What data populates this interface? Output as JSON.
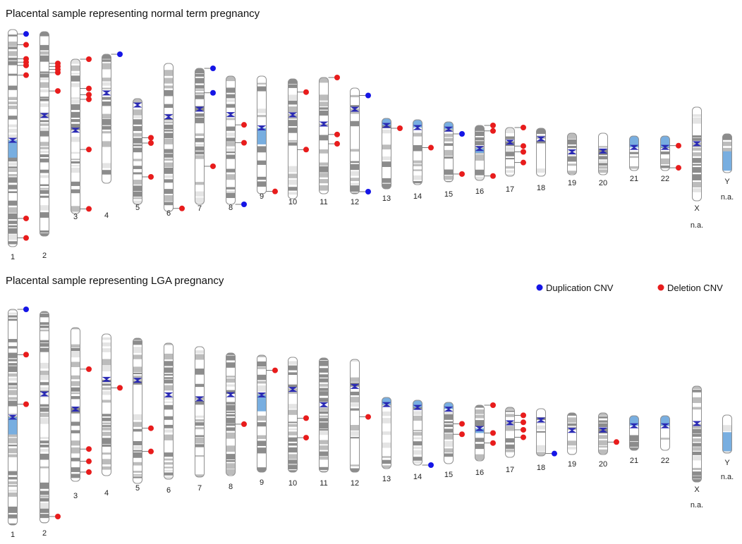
{
  "colors": {
    "duplication": "#1515e6",
    "deletion": "#e81c1c",
    "centromere": "#2a2ab4",
    "heterochromatin": "#78aee0",
    "outline": "#909090",
    "band_dark": "#8c8c8c",
    "band_mid": "#bcbcbc",
    "band_light": "#e4e4e4"
  },
  "legend": {
    "duplication_label": "Duplication CNV",
    "deletion_label": "Deletion CNV"
  },
  "panels": [
    {
      "id": "normal",
      "title": "Placental sample representing normal term pregnancy",
      "chromosomes": [
        {
          "label": "1",
          "na": ""
        },
        {
          "label": "2",
          "na": ""
        },
        {
          "label": "3",
          "na": ""
        },
        {
          "label": "4",
          "na": ""
        },
        {
          "label": "5",
          "na": ""
        },
        {
          "label": "6",
          "na": ""
        },
        {
          "label": "7",
          "na": ""
        },
        {
          "label": "8",
          "na": ""
        },
        {
          "label": "9",
          "na": ""
        },
        {
          "label": "10",
          "na": ""
        },
        {
          "label": "11",
          "na": ""
        },
        {
          "label": "12",
          "na": ""
        },
        {
          "label": "13",
          "na": ""
        },
        {
          "label": "14",
          "na": ""
        },
        {
          "label": "15",
          "na": ""
        },
        {
          "label": "16",
          "na": ""
        },
        {
          "label": "17",
          "na": ""
        },
        {
          "label": "18",
          "na": ""
        },
        {
          "label": "19",
          "na": ""
        },
        {
          "label": "20",
          "na": ""
        },
        {
          "label": "21",
          "na": ""
        },
        {
          "label": "22",
          "na": ""
        },
        {
          "label": "X",
          "na": "n.a."
        },
        {
          "label": "Y",
          "na": "n.a."
        }
      ],
      "cnvs": [
        {
          "chr": "1",
          "pos": 0.02,
          "type": "duplication"
        },
        {
          "chr": "1",
          "pos": 0.07,
          "type": "deletion"
        },
        {
          "chr": "1",
          "pos": 0.135,
          "type": "deletion"
        },
        {
          "chr": "1",
          "pos": 0.15,
          "type": "deletion"
        },
        {
          "chr": "1",
          "pos": 0.165,
          "type": "deletion"
        },
        {
          "chr": "1",
          "pos": 0.21,
          "type": "deletion"
        },
        {
          "chr": "1",
          "pos": 0.87,
          "type": "deletion"
        },
        {
          "chr": "1",
          "pos": 0.96,
          "type": "deletion"
        },
        {
          "chr": "2",
          "pos": 0.155,
          "type": "deletion"
        },
        {
          "chr": "2",
          "pos": 0.17,
          "type": "deletion"
        },
        {
          "chr": "2",
          "pos": 0.185,
          "type": "deletion"
        },
        {
          "chr": "2",
          "pos": 0.2,
          "type": "deletion"
        },
        {
          "chr": "2",
          "pos": 0.29,
          "type": "deletion"
        },
        {
          "chr": "3",
          "pos": 0.0,
          "type": "deletion"
        },
        {
          "chr": "3",
          "pos": 0.19,
          "type": "deletion"
        },
        {
          "chr": "3",
          "pos": 0.23,
          "type": "deletion"
        },
        {
          "chr": "3",
          "pos": 0.26,
          "type": "deletion"
        },
        {
          "chr": "3",
          "pos": 0.585,
          "type": "deletion"
        },
        {
          "chr": "3",
          "pos": 0.97,
          "type": "deletion"
        },
        {
          "chr": "4",
          "pos": 0.0,
          "type": "duplication"
        },
        {
          "chr": "5",
          "pos": 0.37,
          "type": "deletion"
        },
        {
          "chr": "5",
          "pos": 0.42,
          "type": "deletion"
        },
        {
          "chr": "5",
          "pos": 0.74,
          "type": "deletion"
        },
        {
          "chr": "6",
          "pos": 0.98,
          "type": "deletion"
        },
        {
          "chr": "7",
          "pos": 0.0,
          "type": "duplication"
        },
        {
          "chr": "7",
          "pos": 0.18,
          "type": "duplication"
        },
        {
          "chr": "7",
          "pos": 0.72,
          "type": "deletion"
        },
        {
          "chr": "8",
          "pos": 0.38,
          "type": "deletion"
        },
        {
          "chr": "8",
          "pos": 0.52,
          "type": "deletion"
        },
        {
          "chr": "8",
          "pos": 1.0,
          "type": "duplication"
        },
        {
          "chr": "9",
          "pos": 0.98,
          "type": "deletion"
        },
        {
          "chr": "10",
          "pos": 0.11,
          "type": "deletion"
        },
        {
          "chr": "10",
          "pos": 0.59,
          "type": "deletion"
        },
        {
          "chr": "11",
          "pos": 0.0,
          "type": "deletion"
        },
        {
          "chr": "11",
          "pos": 0.49,
          "type": "deletion"
        },
        {
          "chr": "11",
          "pos": 0.57,
          "type": "deletion"
        },
        {
          "chr": "12",
          "pos": 0.07,
          "type": "duplication"
        },
        {
          "chr": "12",
          "pos": 0.98,
          "type": "duplication"
        },
        {
          "chr": "13",
          "pos": 0.14,
          "type": "deletion"
        },
        {
          "chr": "14",
          "pos": 0.43,
          "type": "deletion"
        },
        {
          "chr": "15",
          "pos": 0.2,
          "type": "duplication"
        },
        {
          "chr": "15",
          "pos": 0.87,
          "type": "deletion"
        },
        {
          "chr": "16",
          "pos": 0.0,
          "type": "deletion"
        },
        {
          "chr": "16",
          "pos": 0.1,
          "type": "deletion"
        },
        {
          "chr": "16",
          "pos": 0.92,
          "type": "deletion"
        },
        {
          "chr": "17",
          "pos": 0.0,
          "type": "deletion"
        },
        {
          "chr": "17",
          "pos": 0.38,
          "type": "deletion"
        },
        {
          "chr": "17",
          "pos": 0.5,
          "type": "deletion"
        },
        {
          "chr": "17",
          "pos": 0.72,
          "type": "deletion"
        },
        {
          "chr": "22",
          "pos": 0.28,
          "type": "deletion"
        },
        {
          "chr": "22",
          "pos": 0.92,
          "type": "deletion"
        }
      ]
    },
    {
      "id": "lga",
      "title": "Placental sample representing LGA pregnancy",
      "chromosomes": [
        {
          "label": "1",
          "na": ""
        },
        {
          "label": "2",
          "na": ""
        },
        {
          "label": "3",
          "na": ""
        },
        {
          "label": "4",
          "na": ""
        },
        {
          "label": "5",
          "na": ""
        },
        {
          "label": "6",
          "na": ""
        },
        {
          "label": "7",
          "na": ""
        },
        {
          "label": "8",
          "na": ""
        },
        {
          "label": "9",
          "na": ""
        },
        {
          "label": "10",
          "na": ""
        },
        {
          "label": "11",
          "na": ""
        },
        {
          "label": "12",
          "na": ""
        },
        {
          "label": "13",
          "na": ""
        },
        {
          "label": "14",
          "na": ""
        },
        {
          "label": "15",
          "na": ""
        },
        {
          "label": "16",
          "na": ""
        },
        {
          "label": "17",
          "na": ""
        },
        {
          "label": "18",
          "na": ""
        },
        {
          "label": "19",
          "na": ""
        },
        {
          "label": "20",
          "na": ""
        },
        {
          "label": "21",
          "na": ""
        },
        {
          "label": "22",
          "na": ""
        },
        {
          "label": "X",
          "na": "n.a."
        },
        {
          "label": "Y",
          "na": "n.a."
        }
      ],
      "cnvs": [
        {
          "chr": "1",
          "pos": 0.0,
          "type": "duplication"
        },
        {
          "chr": "1",
          "pos": 0.21,
          "type": "deletion"
        },
        {
          "chr": "1",
          "pos": 0.44,
          "type": "deletion"
        },
        {
          "chr": "2",
          "pos": 0.97,
          "type": "deletion"
        },
        {
          "chr": "3",
          "pos": 0.27,
          "type": "deletion"
        },
        {
          "chr": "3",
          "pos": 0.79,
          "type": "deletion"
        },
        {
          "chr": "3",
          "pos": 0.87,
          "type": "deletion"
        },
        {
          "chr": "3",
          "pos": 0.94,
          "type": "deletion"
        },
        {
          "chr": "4",
          "pos": 0.38,
          "type": "deletion"
        },
        {
          "chr": "5",
          "pos": 0.62,
          "type": "deletion"
        },
        {
          "chr": "5",
          "pos": 0.78,
          "type": "deletion"
        },
        {
          "chr": "8",
          "pos": 0.58,
          "type": "deletion"
        },
        {
          "chr": "9",
          "pos": 0.13,
          "type": "deletion"
        },
        {
          "chr": "10",
          "pos": 0.53,
          "type": "deletion"
        },
        {
          "chr": "10",
          "pos": 0.7,
          "type": "deletion"
        },
        {
          "chr": "12",
          "pos": 0.51,
          "type": "deletion"
        },
        {
          "chr": "14",
          "pos": 1.0,
          "type": "duplication"
        },
        {
          "chr": "15",
          "pos": 0.35,
          "type": "deletion"
        },
        {
          "chr": "15",
          "pos": 0.52,
          "type": "deletion"
        },
        {
          "chr": "16",
          "pos": 0.0,
          "type": "deletion"
        },
        {
          "chr": "16",
          "pos": 0.5,
          "type": "deletion"
        },
        {
          "chr": "16",
          "pos": 0.68,
          "type": "deletion"
        },
        {
          "chr": "17",
          "pos": 0.16,
          "type": "deletion"
        },
        {
          "chr": "17",
          "pos": 0.3,
          "type": "deletion"
        },
        {
          "chr": "17",
          "pos": 0.45,
          "type": "deletion"
        },
        {
          "chr": "17",
          "pos": 0.6,
          "type": "deletion"
        },
        {
          "chr": "18",
          "pos": 0.95,
          "type": "duplication"
        },
        {
          "chr": "20",
          "pos": 0.7,
          "type": "deletion"
        }
      ]
    }
  ]
}
